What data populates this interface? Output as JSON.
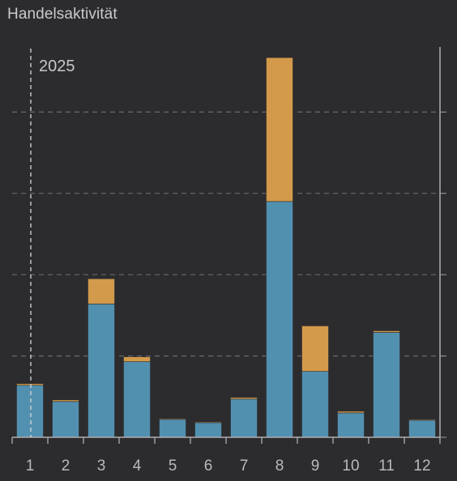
{
  "title": "Handelsaktivität",
  "chart_data": {
    "type": "bar",
    "stacked": true,
    "title": "Handelsaktivität",
    "annotation": "2025",
    "annotation_category": "1",
    "categories": [
      "1",
      "2",
      "3",
      "4",
      "5",
      "6",
      "7",
      "8",
      "9",
      "10",
      "11",
      "12"
    ],
    "series": [
      {
        "values": [
          6.4,
          4.4,
          16.4,
          9.3,
          2.2,
          1.8,
          4.7,
          29.0,
          8.1,
          3.0,
          12.9,
          2.1
        ]
      },
      {
        "values": [
          0.2,
          0.2,
          3.1,
          0.6,
          0.1,
          0.1,
          0.2,
          17.7,
          5.6,
          0.2,
          0.2,
          0.1
        ]
      }
    ],
    "colors": [
      "#5290b0",
      "#d39a4c"
    ],
    "ylim": [
      0,
      50
    ],
    "gridlines": [
      10,
      20,
      30,
      40
    ],
    "grid": true,
    "legend": "none"
  }
}
